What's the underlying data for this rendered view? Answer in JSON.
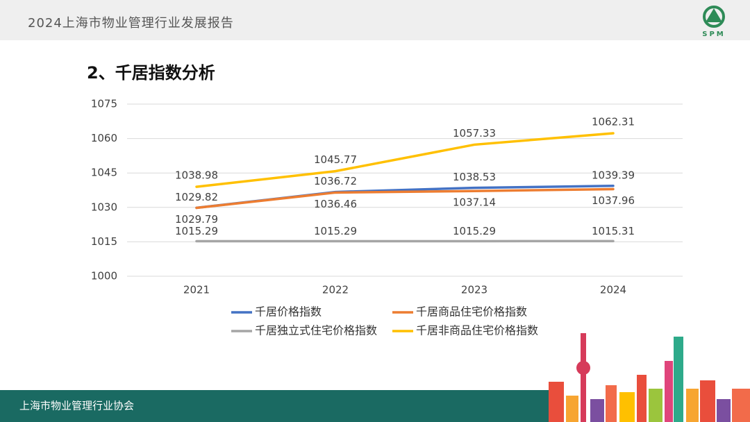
{
  "header": {
    "title": "2024上海市物业管理行业发展报告",
    "logo_text": "SPM"
  },
  "section_title": "2、千居指数分析",
  "footer": {
    "text": "上海市物业管理行业协会"
  },
  "chart_data": {
    "type": "line",
    "categories": [
      "2021",
      "2022",
      "2023",
      "2024"
    ],
    "series": [
      {
        "name": "千居价格指数",
        "color": "#4472c4",
        "values": [
          1029.82,
          1036.72,
          1038.53,
          1039.39
        ]
      },
      {
        "name": "千居商品住宅价格指数",
        "color": "#ed7d31",
        "values": [
          1029.79,
          1036.46,
          1037.14,
          1037.96
        ]
      },
      {
        "name": "千居独立式住宅价格指数",
        "color": "#a5a5a5",
        "values": [
          1015.29,
          1015.29,
          1015.29,
          1015.31
        ]
      },
      {
        "name": "千居非商品住宅价格指数",
        "color": "#ffc000",
        "values": [
          1038.98,
          1045.77,
          1057.33,
          1062.31
        ]
      }
    ],
    "ylim": [
      1000,
      1075
    ],
    "yticks": [
      1000,
      1015,
      1030,
      1045,
      1060,
      1075
    ],
    "grid": true,
    "legend": "bottom"
  }
}
